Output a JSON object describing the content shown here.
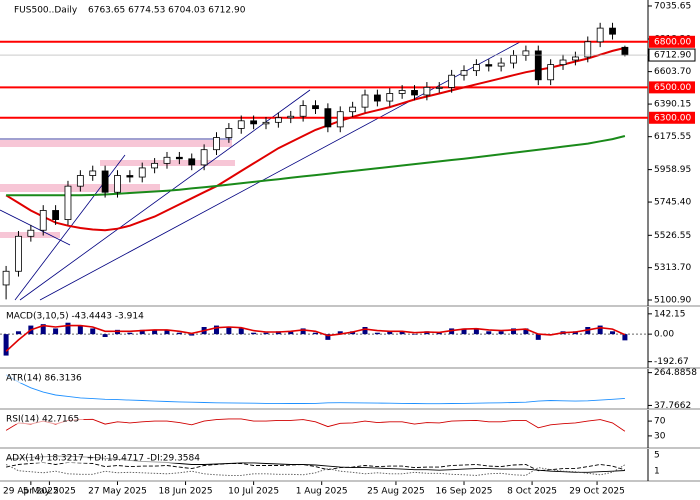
{
  "chart_data": [
    {
      "type": "candlestick",
      "title": "FUS500..Daily",
      "ohlc_text": "6763.65 6774.53 6704.03 6712.90",
      "x": [
        "21 Apr 2025",
        "25 Apr 2025",
        "29 Apr 2025",
        "3 May 2025",
        "7 May 2025",
        "11 May 2025",
        "15 May 2025",
        "19 May 2025",
        "23 May 2025",
        "27 May 2025",
        "31 May 2025",
        "4 Jun 2025",
        "8 Jun 2025",
        "12 Jun 2025",
        "16 Jun 2025",
        "20 Jun 2025",
        "24 Jun 2025",
        "28 Jun 2025",
        "2 Jul 2025",
        "6 Jul 2025",
        "10 Jul 2025",
        "14 Jul 2025",
        "18 Jul 2025",
        "22 Jul 2025",
        "26 Jul 2025",
        "30 Jul 2025",
        "3 Aug 2025",
        "7 Aug 2025",
        "11 Aug 2025",
        "15 Aug 2025",
        "19 Aug 2025",
        "23 Aug 2025",
        "27 Aug 2025",
        "31 Aug 2025",
        "4 Sep 2025",
        "8 Sep 2025",
        "12 Sep 2025",
        "16 Sep 2025",
        "20 Sep 2025",
        "24 Sep 2025",
        "28 Sep 2025",
        "2 Oct 2025",
        "6 Oct 2025",
        "10 Oct 2025",
        "14 Oct 2025",
        "18 Oct 2025",
        "22 Oct 2025",
        "26 Oct 2025",
        "30 Oct 2025",
        "3 Nov 2025",
        "7 Nov 2025"
      ],
      "open": [
        5200,
        5290,
        5520,
        5560,
        5690,
        5630,
        5850,
        5920,
        5950,
        5810,
        5920,
        5910,
        5970,
        6000,
        6040,
        6030,
        5990,
        6090,
        6170,
        6230,
        6280,
        6260,
        6270,
        6300,
        6310,
        6380,
        6360,
        6240,
        6340,
        6370,
        6450,
        6410,
        6460,
        6480,
        6450,
        6500,
        6500,
        6580,
        6610,
        6650,
        6640,
        6660,
        6710,
        6740,
        6550,
        6650,
        6680,
        6700,
        6800,
        6890,
        6763.65
      ],
      "high": [
        5325,
        5555,
        5595,
        5725,
        5725,
        5885,
        5955,
        5985,
        5985,
        5955,
        5955,
        6005,
        6035,
        6075,
        6075,
        6065,
        6125,
        6205,
        6265,
        6315,
        6315,
        6305,
        6335,
        6345,
        6415,
        6415,
        6395,
        6375,
        6405,
        6485,
        6485,
        6495,
        6515,
        6515,
        6535,
        6535,
        6615,
        6645,
        6685,
        6685,
        6695,
        6745,
        6775,
        6775,
        6685,
        6715,
        6735,
        6835,
        6925,
        6925,
        6774.53
      ],
      "low": [
        5105,
        5255,
        5485,
        5525,
        5595,
        5595,
        5815,
        5885,
        5775,
        5775,
        5875,
        5875,
        5935,
        5965,
        5995,
        5955,
        5955,
        6055,
        6135,
        6195,
        6225,
        6225,
        6235,
        6265,
        6275,
        6325,
        6205,
        6205,
        6305,
        6335,
        6375,
        6375,
        6425,
        6415,
        6415,
        6465,
        6465,
        6545,
        6575,
        6605,
        6605,
        6625,
        6675,
        6515,
        6515,
        6615,
        6645,
        6665,
        6765,
        6815,
        6704.03
      ],
      "close": [
        5290,
        5520,
        5560,
        5690,
        5630,
        5850,
        5920,
        5950,
        5810,
        5920,
        5910,
        5970,
        6000,
        6040,
        6030,
        5990,
        6090,
        6170,
        6230,
        6280,
        6260,
        6270,
        6300,
        6310,
        6380,
        6360,
        6240,
        6340,
        6370,
        6450,
        6410,
        6460,
        6480,
        6450,
        6500,
        6500,
        6580,
        6610,
        6650,
        6640,
        6660,
        6710,
        6740,
        6550,
        6650,
        6680,
        6700,
        6800,
        6890,
        6850,
        6712.9
      ],
      "series": [
        {
          "color": "#e00000",
          "values": [
            5790,
            5740,
            5690,
            5650,
            5610,
            5590,
            5575,
            5565,
            5560,
            5570,
            5590,
            5620,
            5650,
            5690,
            5730,
            5770,
            5810,
            5850,
            5900,
            5950,
            6000,
            6050,
            6100,
            6140,
            6180,
            6220,
            6250,
            6280,
            6305,
            6330,
            6350,
            6370,
            6395,
            6420,
            6440,
            6460,
            6480,
            6500,
            6520,
            6540,
            6560,
            6580,
            6600,
            6615,
            6630,
            6650,
            6670,
            6690,
            6715,
            6740,
            6760
          ]
        },
        {
          "color": "#1a8a1a",
          "values": [
            5790,
            5790,
            5790,
            5790,
            5790,
            5790,
            5790,
            5792,
            5795,
            5800,
            5805,
            5810,
            5815,
            5820,
            5827,
            5835,
            5843,
            5851,
            5860,
            5869,
            5878,
            5887,
            5896,
            5905,
            5914,
            5923,
            5932,
            5941,
            5950,
            5959,
            5968,
            5977,
            5986,
            5995,
            6004,
            6013,
            6022,
            6031,
            6040,
            6050,
            6060,
            6070,
            6080,
            6090,
            6100,
            6110,
            6120,
            6130,
            6145,
            6160,
            6180
          ]
        }
      ],
      "levels": [
        {
          "value": 6800,
          "label": "6800.00"
        },
        {
          "value": 6500,
          "label": "6500.00"
        },
        {
          "value": 6300,
          "label": "6300.00"
        }
      ],
      "level_color": "#ff0000",
      "last_price": {
        "value": 6712.9,
        "label": "6712.90"
      },
      "xlim": [
        "20 Apr 2025",
        "8 Nov 2025"
      ],
      "xticks": [
        "29 Apr 2025",
        "5 May 2025",
        "27 May 2025",
        "18 Jun 2025",
        "10 Jul 2025",
        "1 Aug 2025",
        "25 Aug 2025",
        "16 Sep 2025",
        "8 Oct 2025",
        "29 Oct 2025"
      ],
      "ylim": [
        5068,
        7075
      ],
      "yticks": [
        {
          "value": 7035.65,
          "label": "7035.65"
        },
        {
          "value": 6818.2,
          "label": "6818.20"
        },
        {
          "value": 6603.7,
          "label": "6603.70"
        },
        {
          "value": 6390.15,
          "label": "6390.15"
        },
        {
          "value": 6175.55,
          "label": "6175.55"
        },
        {
          "value": 5958.95,
          "label": "5958.95"
        },
        {
          "value": 5745.4,
          "label": "5745.40"
        },
        {
          "value": 5526.55,
          "label": "5526.55"
        },
        {
          "value": 5313.7,
          "label": "5313.70"
        },
        {
          "value": 5100.9,
          "label": "5100.90"
        }
      ]
    },
    {
      "type": "macd",
      "label": "MACD(3,10,5) -43.4443 -3.914",
      "series": [
        {
          "style": "bar",
          "color": "#000080",
          "values": [
            -150,
            20,
            60,
            70,
            40,
            80,
            60,
            40,
            -20,
            30,
            10,
            30,
            30,
            30,
            10,
            -10,
            50,
            60,
            50,
            40,
            10,
            10,
            20,
            20,
            40,
            10,
            -40,
            20,
            20,
            50,
            10,
            20,
            20,
            0,
            20,
            10,
            40,
            40,
            40,
            20,
            20,
            40,
            40,
            -40,
            0,
            20,
            20,
            50,
            60,
            20,
            -43.4443
          ]
        },
        {
          "style": "line",
          "color": "#e00000",
          "values": [
            -120,
            -40,
            30,
            60,
            50,
            60,
            60,
            50,
            20,
            20,
            20,
            25,
            30,
            30,
            20,
            5,
            25,
            45,
            50,
            45,
            25,
            15,
            15,
            20,
            30,
            20,
            -10,
            0,
            15,
            35,
            25,
            20,
            20,
            10,
            15,
            12,
            25,
            35,
            38,
            30,
            25,
            30,
            35,
            0,
            -5,
            10,
            15,
            30,
            45,
            35,
            -3.914
          ]
        }
      ],
      "ylim": [
        -230,
        190
      ],
      "yticks": [
        142.15,
        {
          "value": 0,
          "label": "0.00"
        },
        -192.67
      ]
    },
    {
      "type": "line",
      "label": "ATR(14) 86.3136",
      "series": [
        {
          "style": "line",
          "color": "#1e90ff",
          "values": [
            250,
            200,
            160,
            130,
            110,
            100,
            90,
            85,
            80,
            78,
            75,
            72,
            68,
            65,
            62,
            60,
            58,
            56,
            55,
            54,
            53,
            52,
            52,
            51,
            51,
            52,
            56,
            57,
            56,
            55,
            54,
            53,
            52,
            51,
            50,
            50,
            51,
            52,
            53,
            55,
            56,
            58,
            60,
            68,
            72,
            70,
            68,
            70,
            75,
            80,
            86.3136
          ]
        }
      ],
      "ylim": [
        20,
        290
      ],
      "yticks": [
        264.8858,
        37.7662
      ]
    },
    {
      "type": "line",
      "label": "RSI(14) 42.7165",
      "series": [
        {
          "style": "line",
          "color": "#d00000",
          "values": [
            45,
            65,
            62,
            70,
            62,
            72,
            74,
            75,
            62,
            68,
            65,
            68,
            70,
            70,
            66,
            60,
            70,
            74,
            76,
            76,
            70,
            70,
            72,
            72,
            74,
            68,
            55,
            64,
            65,
            70,
            66,
            68,
            68,
            62,
            66,
            65,
            70,
            71,
            72,
            68,
            68,
            72,
            72,
            52,
            60,
            63,
            65,
            70,
            74,
            65,
            42.7165
          ]
        }
      ],
      "ylim": [
        0,
        100
      ],
      "yticks": [
        70,
        30
      ]
    },
    {
      "type": "line",
      "label": "ADX(14) 18.3217 +DI:19.4717 -DI:29.3584",
      "series": [
        {
          "style": "line",
          "color": "#000000",
          "values": [
            40,
            42,
            44,
            45,
            46,
            46,
            45,
            44,
            42,
            40,
            38,
            36,
            35,
            34,
            32,
            30,
            30,
            31,
            32,
            33,
            33,
            32,
            31,
            30,
            30,
            29,
            27,
            25,
            24,
            24,
            23,
            22,
            21,
            20,
            20,
            19,
            20,
            21,
            22,
            22,
            21,
            21,
            21,
            19,
            17,
            16,
            15,
            15,
            16,
            17,
            18.3217
          ]
        },
        {
          "style": "dashed",
          "color": "#000000",
          "values": [
            25,
            30,
            32,
            34,
            30,
            34,
            33,
            32,
            26,
            28,
            26,
            27,
            27,
            28,
            25,
            22,
            28,
            30,
            32,
            32,
            28,
            28,
            28,
            29,
            30,
            26,
            20,
            24,
            25,
            28,
            26,
            27,
            27,
            24,
            25,
            25,
            28,
            29,
            30,
            27,
            26,
            29,
            30,
            18,
            20,
            22,
            22,
            26,
            30,
            27,
            19.4717
          ]
        },
        {
          "style": "dotted",
          "color": "#555555",
          "values": [
            30,
            18,
            16,
            14,
            17,
            12,
            11,
            11,
            17,
            14,
            15,
            14,
            13,
            12,
            14,
            17,
            12,
            10,
            9,
            9,
            12,
            12,
            11,
            11,
            10,
            14,
            22,
            17,
            15,
            12,
            14,
            12,
            12,
            15,
            13,
            13,
            11,
            10,
            9,
            12,
            13,
            10,
            9,
            24,
            20,
            17,
            16,
            13,
            10,
            15,
            29.3584
          ]
        }
      ],
      "ylim": [
        0,
        60
      ],
      "tick_texts": [
        "5",
        "1"
      ]
    }
  ]
}
